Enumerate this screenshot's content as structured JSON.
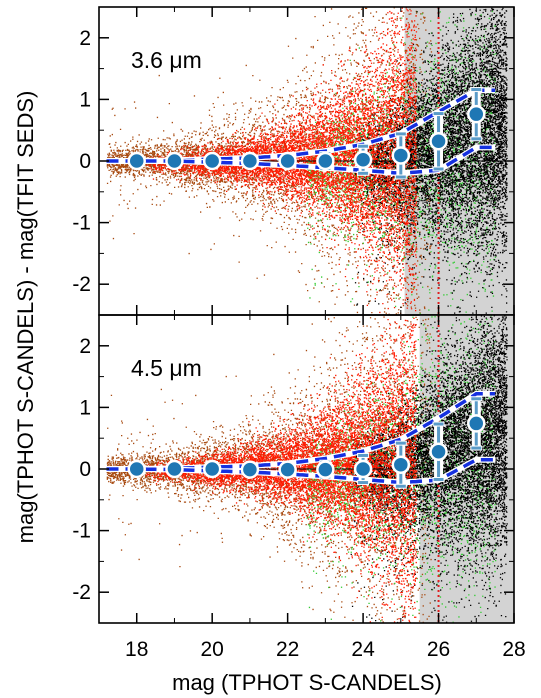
{
  "chart_data": {
    "type": "scatter",
    "xlabel": "mag (TPHOT S-CANDELS)",
    "ylabel": "mag(TPHOT S-CANDELS) - mag(TFIT SEDS)",
    "xlim": [
      17,
      28
    ],
    "ylim": [
      -2.5,
      2.5
    ],
    "x_ticks": [
      "18",
      "20",
      "22",
      "24",
      "26",
      "28"
    ],
    "y_ticks": [
      "-2",
      "-1",
      "0",
      "1",
      "2"
    ],
    "reference_line_y": 0,
    "reference_line_x": 26,
    "colors": {
      "black_points": "#000000",
      "green_points": "#33cc33",
      "brown_points": "#a84a10",
      "red_points": "#ff1a00",
      "band_dash": "#1530e0",
      "marker": "#1f77b4",
      "errorbar": "#5a9bc8",
      "shade": "#d3d3d3",
      "vline": "#e02020"
    },
    "panels": [
      {
        "label": "3.6 μm",
        "shade_from_mag": 25.1,
        "binned_mag": [
          18,
          19,
          20,
          21,
          22,
          23,
          24,
          25,
          26,
          27
        ],
        "binned_median": [
          0.0,
          0.0,
          0.0,
          0.0,
          0.0,
          0.0,
          0.02,
          0.09,
          0.32,
          0.76
        ],
        "binned_err": [
          0.0,
          0.0,
          0.02,
          0.03,
          0.06,
          0.12,
          0.22,
          0.35,
          0.45,
          0.4
        ],
        "band_lower": [
          0.0,
          0.0,
          -0.02,
          -0.04,
          -0.07,
          -0.11,
          -0.15,
          -0.2,
          -0.15,
          0.22
        ],
        "band_upper": [
          0.0,
          0.01,
          0.03,
          0.05,
          0.09,
          0.16,
          0.27,
          0.45,
          0.8,
          1.15
        ]
      },
      {
        "label": "4.5 μm",
        "shade_from_mag": 25.5,
        "binned_mag": [
          18,
          19,
          20,
          21,
          22,
          23,
          24,
          25,
          26,
          27
        ],
        "binned_median": [
          0.0,
          0.0,
          0.0,
          -0.01,
          -0.01,
          -0.01,
          0.0,
          0.07,
          0.28,
          0.74
        ],
        "binned_err": [
          0.0,
          0.0,
          0.02,
          0.03,
          0.06,
          0.12,
          0.22,
          0.35,
          0.45,
          0.4
        ],
        "band_lower": [
          0.0,
          -0.01,
          -0.03,
          -0.05,
          -0.08,
          -0.12,
          -0.17,
          -0.22,
          -0.18,
          0.15
        ],
        "band_upper": [
          0.0,
          0.01,
          0.03,
          0.05,
          0.09,
          0.17,
          0.29,
          0.48,
          0.83,
          1.22
        ]
      }
    ]
  }
}
